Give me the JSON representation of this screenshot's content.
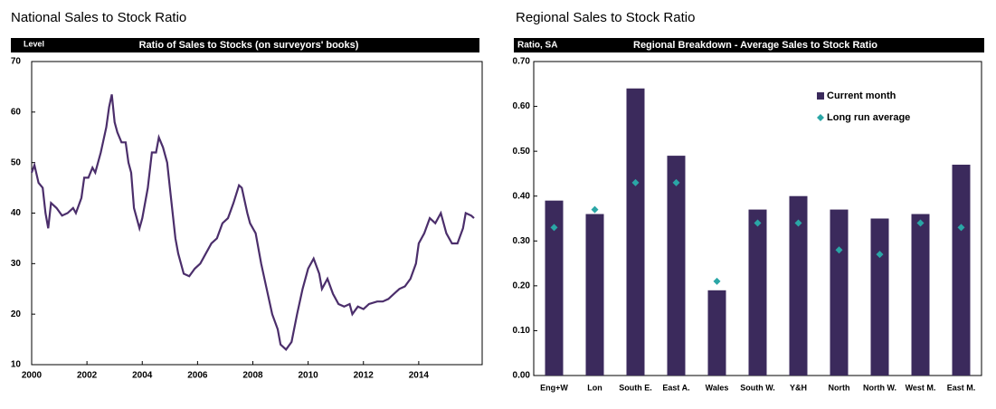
{
  "chart_data": [
    {
      "type": "line",
      "title": "National Sales to Stock Ratio",
      "subtitle": "Ratio of Sales to Stocks (on surveyors' books)",
      "ylabel": "Level",
      "x": [
        2000.0,
        2000.1,
        2000.25,
        2000.4,
        2000.5,
        2000.6,
        2000.7,
        2000.9,
        2001.1,
        2001.3,
        2001.5,
        2001.6,
        2001.8,
        2001.9,
        2002.05,
        2002.2,
        2002.3,
        2002.5,
        2002.7,
        2002.8,
        2002.9,
        2003.0,
        2003.1,
        2003.25,
        2003.4,
        2003.5,
        2003.6,
        2003.7,
        2003.9,
        2004.0,
        2004.2,
        2004.35,
        2004.5,
        2004.6,
        2004.75,
        2004.9,
        2005.0,
        2005.2,
        2005.3,
        2005.5,
        2005.7,
        2005.9,
        2006.1,
        2006.3,
        2006.5,
        2006.7,
        2006.9,
        2007.1,
        2007.3,
        2007.5,
        2007.6,
        2007.8,
        2007.9,
        2008.1,
        2008.3,
        2008.5,
        2008.7,
        2008.9,
        2009.0,
        2009.2,
        2009.4,
        2009.6,
        2009.8,
        2010.0,
        2010.2,
        2010.4,
        2010.5,
        2010.7,
        2010.9,
        2011.1,
        2011.3,
        2011.5,
        2011.6,
        2011.8,
        2012.0,
        2012.2,
        2012.5,
        2012.7,
        2012.9,
        2013.1,
        2013.3,
        2013.5,
        2013.7,
        2013.9,
        2014.0,
        2014.2,
        2014.4,
        2014.6,
        2014.8,
        2015.0,
        2015.2,
        2015.4,
        2015.6,
        2015.7,
        2015.9,
        2016.0
      ],
      "values": [
        48,
        49.5,
        46,
        45,
        40,
        37,
        42,
        41,
        39.5,
        40,
        41,
        40,
        43,
        47,
        47,
        49,
        48,
        52,
        57,
        61,
        63.5,
        58,
        56,
        54,
        54,
        50,
        48,
        41,
        37,
        39,
        45,
        52,
        52,
        55,
        53,
        50,
        45,
        35,
        32,
        28,
        27.5,
        29,
        30,
        32,
        34,
        35,
        38,
        39,
        42,
        45.5,
        45,
        40,
        38,
        36,
        30,
        25,
        20,
        17,
        14,
        13,
        14.5,
        20,
        25,
        29,
        31,
        28,
        25,
        27,
        24,
        22,
        21.5,
        22,
        20,
        21.5,
        21,
        22,
        22.5,
        22.5,
        23,
        24,
        25,
        25.5,
        27,
        30,
        34,
        36,
        39,
        38,
        40,
        36,
        34,
        34,
        37,
        40,
        39.5,
        39
      ],
      "color": "#4b2e6b",
      "xlim": [
        2000,
        2016
      ],
      "ylim": [
        10,
        70
      ],
      "xticks": [
        2000,
        2002,
        2004,
        2006,
        2008,
        2010,
        2012,
        2014
      ],
      "yticks": [
        10,
        20,
        30,
        40,
        50,
        60,
        70
      ]
    },
    {
      "type": "bar",
      "title": "Regional Sales to Stock Ratio",
      "subtitle": "Regional Breakdown - Average Sales to Stock Ratio",
      "ylabel": "Ratio, SA",
      "categories": [
        "Eng+W",
        "Lon",
        "South E.",
        "East A.",
        "Wales",
        "South W.",
        "Y&H",
        "North",
        "North W.",
        "West M.",
        "East M."
      ],
      "series": [
        {
          "name": "Current month",
          "color": "#3b2a5c",
          "values": [
            0.39,
            0.36,
            0.64,
            0.49,
            0.19,
            0.37,
            0.4,
            0.37,
            0.35,
            0.36,
            0.47
          ]
        },
        {
          "name": "Long run average",
          "color": "#2aa6a6",
          "type": "scatter",
          "values": [
            0.33,
            0.37,
            0.43,
            0.43,
            0.21,
            0.34,
            0.34,
            0.28,
            0.27,
            0.34,
            0.33
          ]
        }
      ],
      "ylim": [
        0,
        0.7
      ],
      "yticks": [
        {
          "value": 0,
          "label": "0.00"
        },
        {
          "value": 0.1,
          "label": "0.10"
        },
        {
          "value": 0.2,
          "label": "0.20"
        },
        {
          "value": 0.3,
          "label": "0.30"
        },
        {
          "value": 0.4,
          "label": "0.40"
        },
        {
          "value": 0.5,
          "label": "0.50"
        },
        {
          "value": 0.6,
          "label": "0.60"
        },
        {
          "value": 0.7,
          "label": "0.70"
        }
      ],
      "legend": "top right"
    }
  ]
}
